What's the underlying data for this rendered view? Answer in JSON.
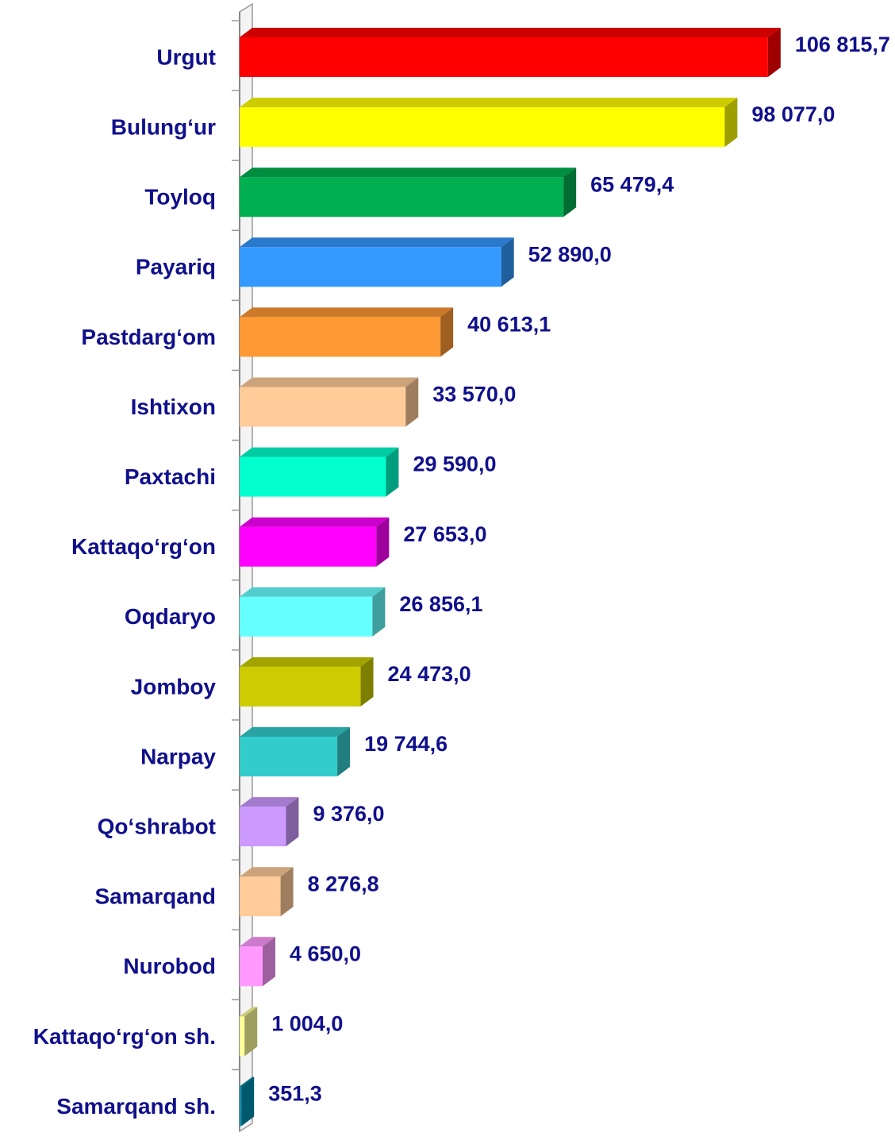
{
  "chart_data": {
    "type": "bar3d_horizontal",
    "categories": [
      "Urgut",
      "Bulung‘ur",
      "Toyloq",
      "Payariq",
      "Pastdarg‘om",
      "Ishtixon",
      "Paxtachi",
      "Kattaqo‘rg‘on",
      "Oqdaryo",
      "Jomboy",
      "Narpay",
      "Qo‘shrabot",
      "Samarqand",
      "Nurobod",
      "Kattaqo‘rg‘on sh.",
      "Samarqand sh."
    ],
    "values": [
      106815.7,
      98077.0,
      65479.4,
      52890.0,
      40613.1,
      33570.0,
      29590.0,
      27653.0,
      26856.1,
      24473.0,
      19744.6,
      9376.0,
      8276.8,
      4650.0,
      1004.0,
      351.3
    ],
    "value_labels": [
      "106 815,7",
      "98 077,0",
      "65 479,4",
      "52 890,0",
      "40 613,1",
      "33 570,0",
      "29 590,0",
      "27 653,0",
      "26 856,1",
      "24 473,0",
      "19 744,6",
      "9 376,0",
      "8 276,8",
      "4 650,0",
      "1 004,0",
      "351,3"
    ],
    "colors": [
      "#ff0000",
      "#ffff00",
      "#00b050",
      "#3399ff",
      "#ff9933",
      "#ffcc99",
      "#00ffcc",
      "#ff00ff",
      "#66ffff",
      "#cccc00",
      "#33cccc",
      "#cc99ff",
      "#ffcc99",
      "#ff99ff",
      "#ffff99",
      "#0090b0"
    ],
    "xlim": [
      0,
      120000
    ]
  }
}
